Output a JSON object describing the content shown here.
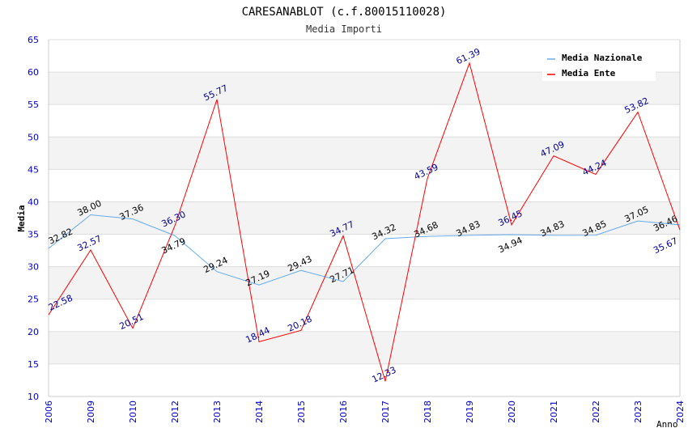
{
  "chart_data": {
    "type": "line",
    "title": "CARESANABLOT (c.f.80015110028)",
    "subtitle": "Media Importi",
    "xlabel": "Anno",
    "ylabel": "Media",
    "ylim": [
      10,
      65
    ],
    "yticks": [
      10,
      15,
      20,
      25,
      30,
      35,
      40,
      45,
      50,
      55,
      60,
      65
    ],
    "categories": [
      "2006",
      "2009",
      "2010",
      "2012",
      "2013",
      "2014",
      "2015",
      "2016",
      "2017",
      "2018",
      "2019",
      "2020",
      "2021",
      "2022",
      "2023",
      "2024"
    ],
    "legend_position": "top-right",
    "series": [
      {
        "name": "Media Nazionale",
        "color": "#66aaee",
        "label_color": "#000000",
        "values": [
          32.82,
          38.0,
          37.36,
          34.79,
          29.24,
          27.19,
          29.43,
          27.71,
          34.32,
          34.68,
          34.83,
          34.94,
          34.83,
          34.85,
          37.05,
          36.46
        ]
      },
      {
        "name": "Media Ente",
        "color": "#ff0000",
        "label_color": "#000099",
        "values": [
          22.58,
          32.57,
          20.51,
          36.3,
          55.77,
          18.44,
          20.18,
          34.77,
          12.33,
          43.59,
          61.39,
          36.45,
          47.09,
          44.24,
          53.82,
          35.67
        ]
      }
    ]
  }
}
